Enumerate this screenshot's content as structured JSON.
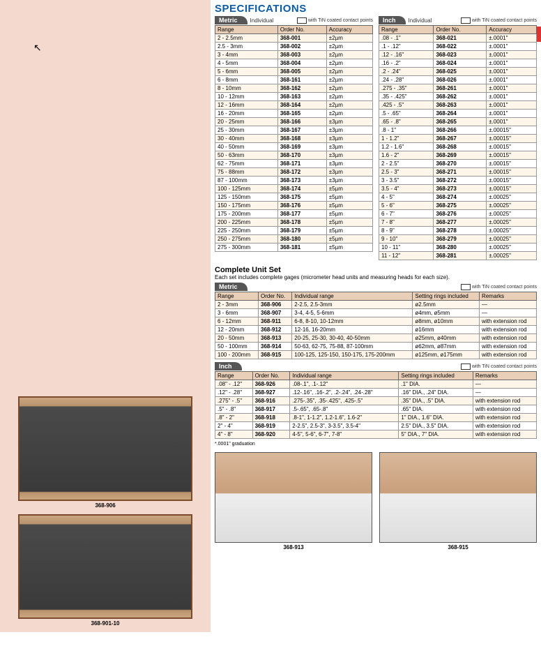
{
  "title": "SPECIFICATIONS",
  "tabs": {
    "metric": "Metric",
    "inch": "Inch",
    "individual": "Individual",
    "tin": "with TiN coated contact points"
  },
  "headers": {
    "range": "Range",
    "order": "Order No.",
    "accuracy": "Accuracy",
    "indiv_range": "Individual range",
    "rings": "Setting rings included",
    "remarks": "Remarks"
  },
  "metric_rows": [
    [
      "2 - 2.5mm",
      "368-001",
      "±2µm"
    ],
    [
      "2.5 - 3mm",
      "368-002",
      "±2µm"
    ],
    [
      "3 - 4mm",
      "368-003",
      "±2µm"
    ],
    [
      "4 - 5mm",
      "368-004",
      "±2µm"
    ],
    [
      "5 - 6mm",
      "368-005",
      "±2µm"
    ],
    [
      "6 - 8mm",
      "368-161",
      "±2µm"
    ],
    [
      "8 - 10mm",
      "368-162",
      "±2µm"
    ],
    [
      "10 - 12mm",
      "368-163",
      "±2µm"
    ],
    [
      "12 - 16mm",
      "368-164",
      "±2µm"
    ],
    [
      "16 - 20mm",
      "368-165",
      "±2µm"
    ],
    [
      "20 - 25mm",
      "368-166",
      "±3µm"
    ],
    [
      "25 - 30mm",
      "368-167",
      "±3µm"
    ],
    [
      "30 - 40mm",
      "368-168",
      "±3µm"
    ],
    [
      "40 - 50mm",
      "368-169",
      "±3µm"
    ],
    [
      "50 - 63mm",
      "368-170",
      "±3µm"
    ],
    [
      "62 - 75mm",
      "368-171",
      "±3µm"
    ],
    [
      "75 - 88mm",
      "368-172",
      "±3µm"
    ],
    [
      "87 - 100mm",
      "368-173",
      "±3µm"
    ],
    [
      "100 - 125mm",
      "368-174",
      "±5µm"
    ],
    [
      "125 - 150mm",
      "368-175",
      "±5µm"
    ],
    [
      "150 - 175mm",
      "368-176",
      "±5µm"
    ],
    [
      "175 - 200mm",
      "368-177",
      "±5µm"
    ],
    [
      "200 - 225mm",
      "368-178",
      "±5µm"
    ],
    [
      "225 - 250mm",
      "368-179",
      "±5µm"
    ],
    [
      "250 - 275mm",
      "368-180",
      "±5µm"
    ],
    [
      "275 - 300mm",
      "368-181",
      "±5µm"
    ]
  ],
  "inch_rows": [
    [
      ".08 - .1\"",
      "368-021",
      "±.0001\""
    ],
    [
      ".1 - .12\"",
      "368-022",
      "±.0001\""
    ],
    [
      ".12 - .16\"",
      "368-023",
      "±.0001\""
    ],
    [
      ".16 - .2\"",
      "368-024",
      "±.0001\""
    ],
    [
      ".2 - .24\"",
      "368-025",
      "±.0001\""
    ],
    [
      ".24 - .28\"",
      "368-026",
      "±.0001\""
    ],
    [
      ".275 - .35\"",
      "368-261",
      "±.0001\""
    ],
    [
      ".35 - .425\"",
      "368-262",
      "±.0001\""
    ],
    [
      ".425 - .5\"",
      "368-263",
      "±.0001\""
    ],
    [
      ".5 - .65\"",
      "368-264",
      "±.0001\""
    ],
    [
      ".65 - .8\"",
      "368-265",
      "±.0001\""
    ],
    [
      ".8 - 1\"",
      "368-266",
      "±.00015\""
    ],
    [
      "1 - 1.2\"",
      "368-267",
      "±.00015\""
    ],
    [
      "1.2 - 1.6\"",
      "368-268",
      "±.00015\""
    ],
    [
      "1.6 - 2\"",
      "368-269",
      "±.00015\""
    ],
    [
      "2 - 2.5\"",
      "368-270",
      "±.00015\""
    ],
    [
      "2.5 - 3\"",
      "368-271",
      "±.00015\""
    ],
    [
      "3 - 3.5\"",
      "368-272",
      "±.00015\""
    ],
    [
      "3.5 - 4\"",
      "368-273",
      "±.00015\""
    ],
    [
      "4 - 5\"",
      "368-274",
      "±.00025\""
    ],
    [
      "5 - 6\"",
      "368-275",
      "±.00025\""
    ],
    [
      "6 - 7\"",
      "368-276",
      "±.00025\""
    ],
    [
      "7 - 8\"",
      "368-277",
      "±.00025\""
    ],
    [
      "8 - 9\"",
      "368-278",
      "±.00025\""
    ],
    [
      "9 - 10\"",
      "368-279",
      "±.00025\""
    ],
    [
      "10 - 11\"",
      "368-280",
      "±.00025\""
    ],
    [
      "11 - 12\"",
      "368-281",
      "±.00025\""
    ]
  ],
  "complete_set": {
    "title": "Complete Unit Set",
    "desc": "Each set includes complete gages (micrometer head units and measuring heads for each size)."
  },
  "set_metric_rows": [
    [
      "2 - 3mm",
      "368-906",
      "2-2.5, 2.5-3mm",
      "ø2.5mm",
      "—"
    ],
    [
      "3 - 6mm",
      "368-907",
      "3-4, 4-5, 5-6mm",
      "ø4mm, ø5mm",
      "—"
    ],
    [
      "6 - 12mm",
      "368-911",
      "6-8, 8-10, 10-12mm",
      "ø8mm, ø10mm",
      "with extension rod"
    ],
    [
      "12 - 20mm",
      "368-912",
      "12-16, 16-20mm",
      "ø16mm",
      "with extension rod"
    ],
    [
      "20 - 50mm",
      "368-913",
      "20-25, 25-30, 30-40, 40-50mm",
      "ø25mm, ø40mm",
      "with extension rod"
    ],
    [
      "50 - 100mm",
      "368-914",
      "50-63, 62-75, 75-88, 87-100mm",
      "ø62mm, ø87mm",
      "with extension rod"
    ],
    [
      "100 - 200mm",
      "368-915",
      "100-125, 125-150, 150-175, 175-200mm",
      "ø125mm, ø175mm",
      "with extension rod"
    ]
  ],
  "set_inch_rows": [
    [
      ".08\" - .12\"",
      "368-926",
      ".08-.1\", .1-.12\"",
      ".1\" DIA.",
      "—"
    ],
    [
      ".12\" - .28\"",
      "368-927",
      ".12-.16\", .16-.2\", .2-.24\", .24-.28\"",
      ".16\" DIA., .24\" DIA.",
      "—"
    ],
    [
      ".275\" - .5\"",
      "368-916",
      ".275-.35\", .35-.425\", .425-.5\"",
      ".35\" DIA., .5\" DIA.",
      "with extension rod"
    ],
    [
      ".5\" - .8\"",
      "368-917",
      ".5-.65\", .65-.8\"",
      ".65\" DIA.",
      "with extension rod"
    ],
    [
      ".8\" - 2\"",
      "368-918",
      ".8-1\", 1-1.2\", 1.2-1.6\", 1.6-2\"",
      "1\" DIA., 1.6\" DIA.",
      "with extension rod"
    ],
    [
      "2\" - 4\"",
      "368-919",
      "2-2.5\", 2.5-3\", 3-3.5\", 3.5-4\"",
      "2.5\" DIA., 3.5\" DIA.",
      "with extension rod"
    ],
    [
      "4\" - 8\"",
      "368-920",
      "4-5\", 5-6\", 6-7\", 7-8\"",
      "5\" DIA., 7\" DIA.",
      "with extension rod"
    ]
  ],
  "footnote": "*.0001\" graduation",
  "captions": {
    "p1": "368-906",
    "p2": "368-901-10",
    "p3": "368-913",
    "p4": "368-915"
  }
}
